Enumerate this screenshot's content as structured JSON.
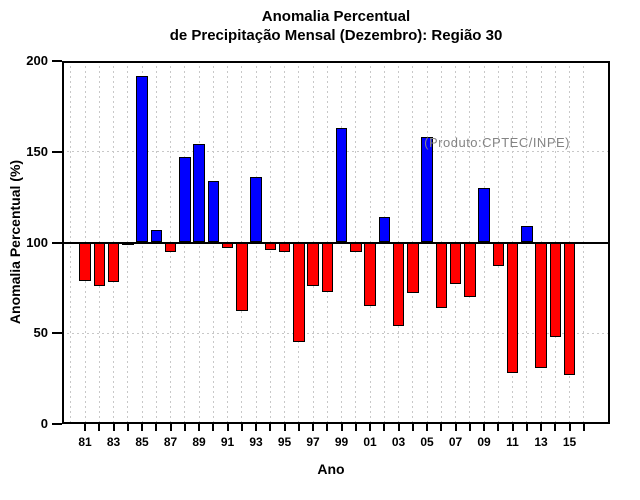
{
  "title": {
    "line1": "Anomalia Percentual",
    "line2": "de Precipitação Mensal (Dezembro): Região 30"
  },
  "annotation": "(Produto:CPTEC/INPE)",
  "chart_data": {
    "type": "bar",
    "title": "Anomalia Percentual de Precipitação Mensal (Dezembro): Região 30",
    "xlabel": "Ano",
    "ylabel": "Anomalia Percentual (%)",
    "ylim": [
      0,
      200
    ],
    "yticks": [
      0,
      50,
      100,
      150,
      200
    ],
    "ytick_labels": [
      "0",
      "50",
      "100",
      "150",
      "200"
    ],
    "baseline": 100,
    "grid": true,
    "legend": "none",
    "categories": [
      1981,
      1982,
      1983,
      1984,
      1985,
      1986,
      1987,
      1988,
      1989,
      1990,
      1991,
      1992,
      1993,
      1994,
      1995,
      1996,
      1997,
      1998,
      1999,
      2000,
      2001,
      2002,
      2003,
      2004,
      2005,
      2006,
      2007,
      2008,
      2009,
      2010,
      2011,
      2012,
      2013,
      2014,
      2015
    ],
    "values": [
      79,
      76,
      78,
      99,
      192,
      107,
      95,
      147,
      154,
      134,
      97,
      62,
      136,
      96,
      95,
      45,
      76,
      73,
      163,
      95,
      65,
      114,
      54,
      72,
      158,
      64,
      77,
      70,
      130,
      87,
      28,
      109,
      31,
      48,
      27
    ],
    "x_tick_labels": [
      "81",
      "83",
      "85",
      "87",
      "89",
      "91",
      "93",
      "95",
      "97",
      "99",
      "01",
      "03",
      "05",
      "07",
      "09",
      "11",
      "13",
      "15"
    ],
    "colors": {
      "above_baseline": "#0000ff",
      "below_baseline": "#ff0000",
      "bar_border": "#000000",
      "grid": "#c8c8c8",
      "annotation": "#848484"
    }
  }
}
